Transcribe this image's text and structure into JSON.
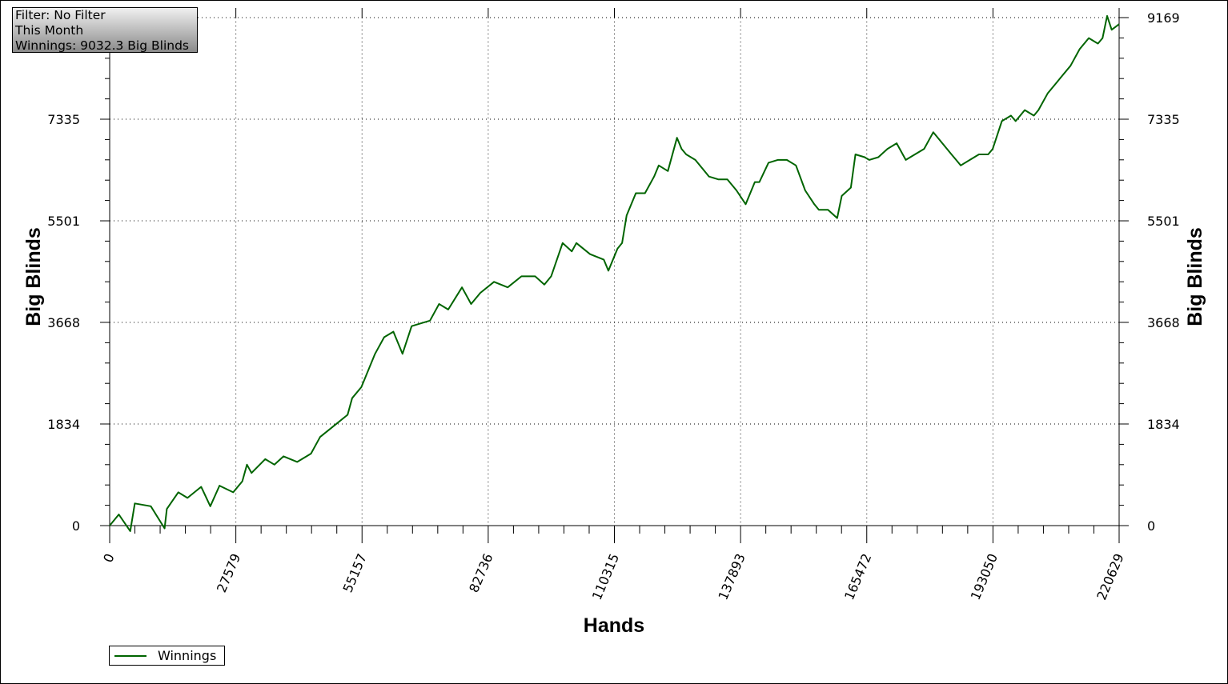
{
  "info": {
    "filter": "Filter: No Filter",
    "period": "This Month",
    "winnings": "Winnings: 9032.3 Big Blinds"
  },
  "colors": {
    "series": "#006400",
    "grid": "#000000",
    "axis": "#000000"
  },
  "chart_data": {
    "type": "line",
    "xlabel": "Hands",
    "ylabel": "Big Blinds",
    "xlim": [
      0,
      220629
    ],
    "ylim": [
      0,
      9169
    ],
    "x_ticks": [
      "0",
      "27579",
      "55157",
      "82736",
      "110315",
      "137893",
      "165472",
      "193050",
      "220629"
    ],
    "y_ticks": [
      "0",
      "1834",
      "3668",
      "5501",
      "7335",
      "9169"
    ],
    "grid": true,
    "legend_position": "bottom-left",
    "series": [
      {
        "name": "Winnings",
        "x": [
          0,
          2000,
          4500,
          5500,
          9000,
          12000,
          12500,
          15000,
          17000,
          20000,
          22000,
          24000,
          27000,
          29000,
          30000,
          31000,
          34000,
          36000,
          38000,
          41000,
          44000,
          46000,
          49000,
          52000,
          53000,
          55000,
          56000,
          58000,
          60000,
          62000,
          64000,
          66000,
          68000,
          70000,
          72000,
          74000,
          77000,
          79000,
          81000,
          84000,
          87000,
          90000,
          93000,
          95000,
          96500,
          99000,
          101000,
          102000,
          105000,
          108000,
          109000,
          111000,
          112000,
          113000,
          115000,
          117000,
          119000,
          120000,
          122000,
          124000,
          125000,
          126000,
          128000,
          130000,
          131000,
          133000,
          135000,
          137000,
          139000,
          141000,
          142000,
          144000,
          146000,
          148000,
          150000,
          152000,
          154000,
          155000,
          157000,
          159000,
          160000,
          162000,
          163000,
          165000,
          166000,
          168000,
          170000,
          172000,
          174000,
          176000,
          178000,
          180000,
          182000,
          184000,
          185000,
          186000,
          188000,
          190000,
          192000,
          193000,
          195000,
          197000,
          198000,
          200000,
          202000,
          203000,
          205000,
          207000,
          208000,
          210000,
          212000,
          214000,
          216000,
          217000,
          218000,
          219000,
          220629
        ],
        "values": [
          0,
          200,
          -100,
          400,
          350,
          -50,
          300,
          600,
          500,
          700,
          350,
          720,
          600,
          800,
          1100,
          950,
          1200,
          1100,
          1250,
          1150,
          1300,
          1600,
          1800,
          2000,
          2300,
          2500,
          2700,
          3100,
          3400,
          3500,
          3100,
          3600,
          3650,
          3700,
          4000,
          3900,
          4300,
          4000,
          4200,
          4400,
          4300,
          4500,
          4500,
          4350,
          4500,
          5100,
          4950,
          5100,
          4900,
          4800,
          4600,
          5000,
          5100,
          5600,
          6000,
          6000,
          6300,
          6500,
          6400,
          7000,
          6800,
          6700,
          6600,
          6400,
          6300,
          6250,
          6250,
          6050,
          5800,
          6200,
          6200,
          6550,
          6600,
          6600,
          6500,
          6050,
          5800,
          5700,
          5700,
          5550,
          5950,
          6100,
          6700,
          6650,
          6600,
          6650,
          6800,
          6900,
          6600,
          6700,
          6800,
          7100,
          6900,
          6700,
          6600,
          6500,
          6600,
          6700,
          6700,
          6800,
          7300,
          7400,
          7300,
          7500,
          7400,
          7500,
          7800,
          8000,
          8100,
          8300,
          8600,
          8800,
          8700,
          8800,
          9200,
          8950,
          9050
        ]
      }
    ]
  }
}
